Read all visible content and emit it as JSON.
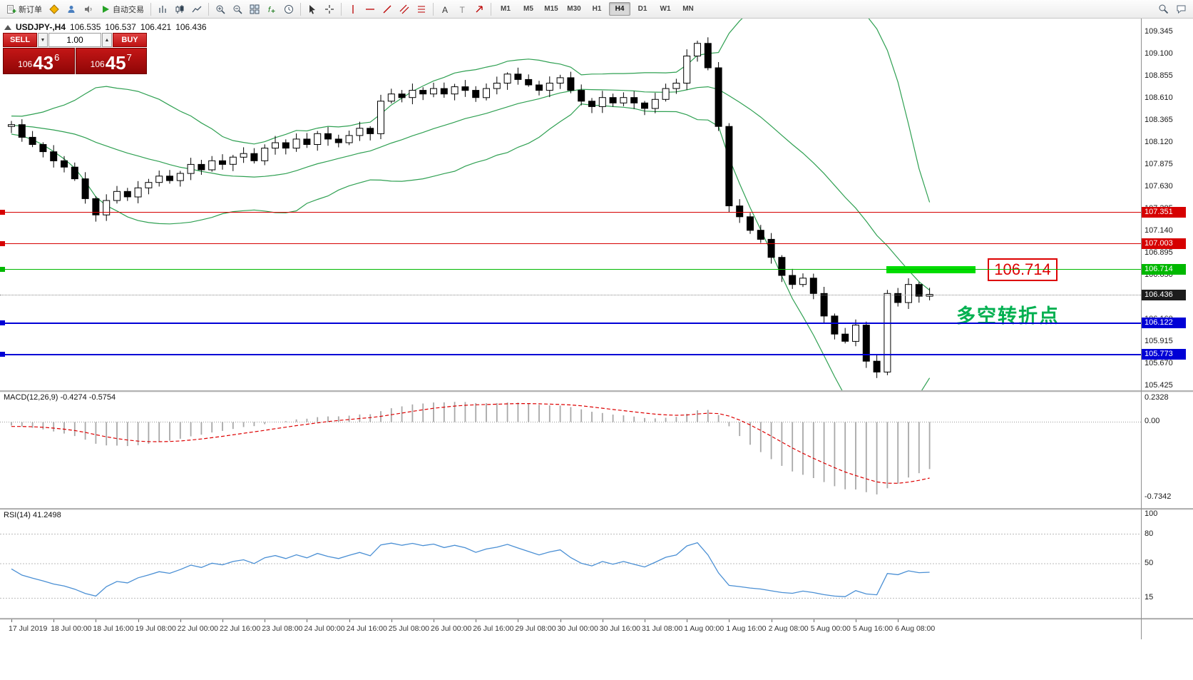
{
  "toolbar": {
    "new_order_label": "新订单",
    "autotrading_label": "自动交易",
    "timeframes": [
      "M1",
      "M5",
      "M15",
      "M30",
      "H1",
      "H4",
      "D1",
      "W1",
      "MN"
    ],
    "active_timeframe": "H4"
  },
  "symbol_header": {
    "name": "USDJPY-,H4",
    "open": "106.535",
    "high": "106.537",
    "low": "106.421",
    "close": "106.436"
  },
  "trade_panel": {
    "sell_label": "SELL",
    "buy_label": "BUY",
    "volume": "1.00",
    "sell_price": {
      "prefix": "106",
      "big": "43",
      "sup": "6"
    },
    "buy_price": {
      "prefix": "106",
      "big": "45",
      "sup": "7"
    }
  },
  "chart_data": {
    "type": "candlestick",
    "symbol": "USDJPY-",
    "timeframe": "H4",
    "indicators": [
      "Bollinger Bands (20,2)",
      "MACD(12,26,9)",
      "RSI(14)"
    ],
    "price_axis_ticks": [
      "109.345",
      "109.100",
      "108.855",
      "108.610",
      "108.365",
      "108.120",
      "107.875",
      "107.630",
      "107.385",
      "107.140",
      "106.895",
      "106.650",
      "106.405",
      "106.160",
      "105.915",
      "105.670",
      "105.425"
    ],
    "warmup_closes": [
      108.55,
      108.6,
      108.52,
      108.45,
      108.5,
      108.42,
      108.35,
      108.4,
      108.3,
      108.35,
      108.25,
      108.3,
      108.2,
      108.28,
      108.35,
      108.3,
      108.38,
      108.3,
      108.25,
      108.35,
      108.3,
      108.4,
      108.35,
      108.28,
      108.35,
      108.3
    ],
    "closes": [
      108.32,
      108.18,
      108.1,
      108.02,
      107.92,
      107.85,
      107.72,
      107.5,
      107.32,
      107.48,
      107.58,
      107.52,
      107.62,
      107.68,
      107.75,
      107.7,
      107.78,
      107.88,
      107.82,
      107.92,
      107.88,
      107.96,
      108.0,
      107.92,
      108.06,
      108.12,
      108.06,
      108.16,
      108.1,
      108.22,
      108.16,
      108.12,
      108.2,
      108.28,
      108.22,
      108.58,
      108.66,
      108.62,
      108.7,
      108.66,
      108.72,
      108.66,
      108.74,
      108.7,
      108.62,
      108.72,
      108.78,
      108.88,
      108.82,
      108.76,
      108.7,
      108.78,
      108.84,
      108.7,
      108.58,
      108.52,
      108.62,
      108.56,
      108.62,
      108.56,
      108.5,
      108.6,
      108.72,
      108.78,
      109.08,
      109.22,
      108.95,
      108.3,
      107.42,
      107.3,
      107.15,
      107.05,
      106.85,
      106.65,
      106.55,
      106.62,
      106.45,
      106.2,
      106.0,
      105.92,
      106.1,
      105.7,
      105.58,
      106.45,
      106.35,
      106.55,
      106.42,
      106.44
    ],
    "time_labels": [
      {
        "text": "17 Jul 2019",
        "bar": 0
      },
      {
        "text": "18 Jul 00:00",
        "bar": 4
      },
      {
        "text": "18 Jul 16:00",
        "bar": 8
      },
      {
        "text": "19 Jul 08:00",
        "bar": 12
      },
      {
        "text": "22 Jul 00:00",
        "bar": 16
      },
      {
        "text": "22 Jul 16:00",
        "bar": 20
      },
      {
        "text": "23 Jul 08:00",
        "bar": 24
      },
      {
        "text": "24 Jul 00:00",
        "bar": 28
      },
      {
        "text": "24 Jul 16:00",
        "bar": 32
      },
      {
        "text": "25 Jul 08:00",
        "bar": 36
      },
      {
        "text": "26 Jul 00:00",
        "bar": 40
      },
      {
        "text": "26 Jul 16:00",
        "bar": 44
      },
      {
        "text": "29 Jul 08:00",
        "bar": 48
      },
      {
        "text": "30 Jul 00:00",
        "bar": 52
      },
      {
        "text": "30 Jul 16:00",
        "bar": 56
      },
      {
        "text": "31 Jul 08:00",
        "bar": 60
      },
      {
        "text": "1 Aug 00:00",
        "bar": 64
      },
      {
        "text": "1 Aug 16:00",
        "bar": 68
      },
      {
        "text": "2 Aug 08:00",
        "bar": 72
      },
      {
        "text": "5 Aug 00:00",
        "bar": 76
      },
      {
        "text": "5 Aug 16:00",
        "bar": 80
      },
      {
        "text": "6 Aug 08:00",
        "bar": 84
      }
    ],
    "hlines": [
      {
        "value": 107.351,
        "text": "107.351",
        "color": "#d60000",
        "thickness": 1
      },
      {
        "value": 107.003,
        "text": "107.003",
        "color": "#d60000",
        "thickness": 1
      },
      {
        "value": 106.714,
        "text": "106.714",
        "color": "#00b800",
        "thickness": 1
      },
      {
        "value": 106.122,
        "text": "106.122",
        "color": "#0000d6",
        "thickness": 2
      },
      {
        "value": 105.773,
        "text": "105.773",
        "color": "#0000d6",
        "thickness": 2
      }
    ],
    "current_price": {
      "value": 106.436,
      "text": "106.436",
      "tag_color": "#1c1c1c"
    },
    "highlight_box": {
      "price": 106.714,
      "color": "#00dd00"
    },
    "callout": {
      "text": "106.714",
      "color": "#dd0000"
    },
    "annotation": {
      "text": "多空转折点",
      "color": "#00b050"
    },
    "bollinger_color": "#2fa052",
    "macd": {
      "label": "MACD(12,26,9) -0.4274 -0.5754",
      "scale_labels": [
        {
          "value": 0.2328,
          "text": "0.2328"
        },
        {
          "value": 0,
          "text": "0.00"
        },
        {
          "value": -0.7342,
          "text": "-0.7342"
        }
      ]
    },
    "rsi": {
      "label": "RSI(14) 41.2498",
      "levels": [
        {
          "value": 100,
          "text": "100",
          "line": false
        },
        {
          "value": 80,
          "text": "80",
          "line": true
        },
        {
          "value": 50,
          "text": "50",
          "line": true
        },
        {
          "value": 15,
          "text": "15",
          "line": true
        }
      ]
    }
  }
}
